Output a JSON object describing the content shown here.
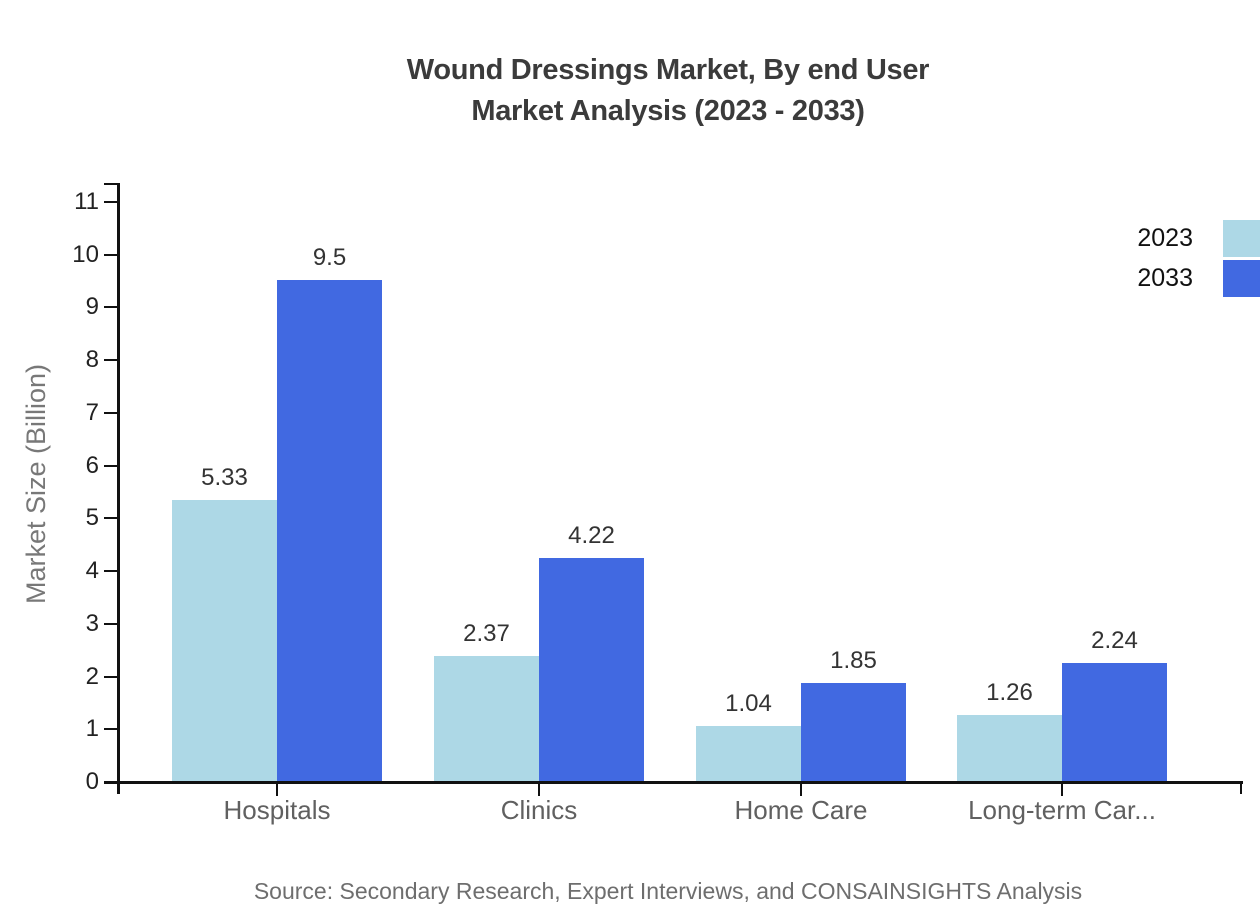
{
  "title": {
    "line1": "Wound Dressings Market, By end User",
    "line2": "Market Analysis (2023 - 2033)"
  },
  "source": "Source: Secondary Research, Expert Interviews, and CONSAINSIGHTS Analysis",
  "colors": {
    "series_2023": "#ADD8E6",
    "series_2033": "#4169E1",
    "axis": "#111111",
    "title_text": "#3b3b3b",
    "category_text": "#606060",
    "ytick_text": "#222222",
    "data_label_text": "#333333",
    "axis_title_text": "#787878",
    "source_text": "#6e6e6e"
  },
  "legend": {
    "items": [
      {
        "label": "2023",
        "color": "#ADD8E6"
      },
      {
        "label": "2033",
        "color": "#4169E1"
      }
    ]
  },
  "chart_data": {
    "type": "bar",
    "title": "Wound Dressings Market, By end User Market Analysis (2023 - 2033)",
    "categories": [
      "Hospitals",
      "Clinics",
      "Home Care",
      "Long-term Car..."
    ],
    "series": [
      {
        "name": "2023",
        "color": "#ADD8E6",
        "values": [
          5.33,
          2.37,
          1.04,
          1.26
        ]
      },
      {
        "name": "2033",
        "color": "#4169E1",
        "values": [
          9.5,
          4.22,
          1.85,
          2.24
        ]
      }
    ],
    "data_labels": [
      [
        "5.33",
        "2.37",
        "1.04",
        "1.26"
      ],
      [
        "9.5",
        "4.22",
        "1.85",
        "2.24"
      ]
    ],
    "xlabel": "",
    "ylabel": "Market Size (Billion)",
    "ylim": [
      0,
      11
    ],
    "ytick_step": 1,
    "yticks": [
      0,
      1,
      2,
      3,
      4,
      5,
      6,
      7,
      8,
      9,
      10,
      11
    ],
    "grid": false,
    "legend_position": "top-right"
  }
}
